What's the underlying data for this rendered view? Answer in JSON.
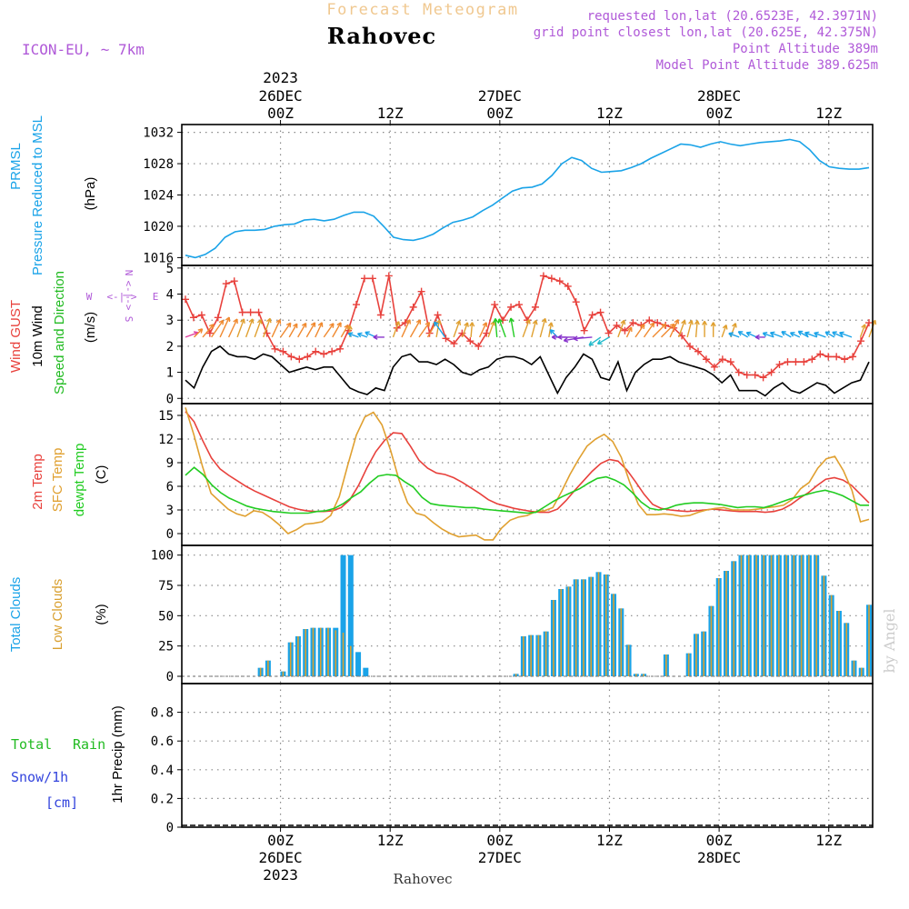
{
  "header": {
    "product_title": "Forecast Meteogram",
    "location": "Rahovec",
    "model": "ICON-EU, ~ 7km",
    "requested": "requested lon,lat (20.6523E, 42.3971N)",
    "grid_point": "grid point closest lon,lat (20.625E, 42.375N)",
    "point_altitude": "Point Altitude 389m",
    "model_altitude": "Model Point Altitude 389.625m",
    "footer_location": "Rahovec",
    "watermark": "by Angel"
  },
  "colors": {
    "pressure": "#1aa3e8",
    "gust": "#e8413c",
    "wind": "#000000",
    "wind_dir_label": "#22bb22",
    "temp2m": "#e8413c",
    "sfc": "#e0a030",
    "dew": "#22cc22",
    "total_clouds": "#1aa3e8",
    "low_clouds": "#d9a030",
    "rain_label": "#22bb22",
    "snow_label": "#3344dd",
    "info": "#b05ad8",
    "title_faint": "#f0c890",
    "grid": "#888888"
  },
  "time_axis": {
    "hours_start": 0,
    "hours_end": 63,
    "top_year": "2023",
    "top_ticks": [
      {
        "h": 9,
        "lines": [
          "26DEC",
          "00Z"
        ]
      },
      {
        "h": 19,
        "lines": [
          "12Z"
        ]
      },
      {
        "h": 29,
        "lines": [
          "27DEC",
          "00Z"
        ]
      },
      {
        "h": 39,
        "lines": [
          "12Z"
        ]
      },
      {
        "h": 49,
        "lines": [
          "28DEC",
          "00Z"
        ]
      },
      {
        "h": 59,
        "lines": [
          "12Z"
        ]
      }
    ],
    "bottom_year": "2023",
    "bottom_ticks": [
      {
        "h": 9,
        "lines": [
          "00Z",
          "26DEC"
        ]
      },
      {
        "h": 19,
        "lines": [
          "12Z"
        ]
      },
      {
        "h": 29,
        "lines": [
          "00Z",
          "27DEC"
        ]
      },
      {
        "h": 39,
        "lines": [
          "12Z"
        ]
      },
      {
        "h": 49,
        "lines": [
          "00Z",
          "28DEC"
        ]
      },
      {
        "h": 59,
        "lines": [
          "12Z"
        ]
      }
    ]
  },
  "chart_data": [
    {
      "type": "line",
      "id": "pressure",
      "label_lines": [
        "PRMSL",
        "Pressure Reduced to MSL"
      ],
      "unit_label": "(hPa)",
      "ylim": [
        1015,
        1033
      ],
      "yticks": [
        1016,
        1020,
        1024,
        1028,
        1032
      ],
      "series": [
        {
          "name": "PRMSL",
          "values": [
            1016.3,
            1016,
            1016.4,
            1017.2,
            1018.6,
            1019.3,
            1019.5,
            1019.5,
            1019.6,
            1020,
            1020.2,
            1020.3,
            1020.8,
            1020.9,
            1020.7,
            1020.9,
            1021.4,
            1021.8,
            1021.8,
            1021.3,
            1020,
            1018.6,
            1018.3,
            1018.2,
            1018.5,
            1019,
            1019.8,
            1020.5,
            1020.8,
            1021.2,
            1022,
            1022.7,
            1023.6,
            1024.5,
            1024.9,
            1025,
            1025.4,
            1026.5,
            1028,
            1028.8,
            1028.4,
            1027.4,
            1026.9,
            1027,
            1027.1,
            1027.5,
            1028,
            1028.7,
            1029.3,
            1029.9,
            1030.5,
            1030.4,
            1030.1,
            1030.5,
            1030.8,
            1030.5,
            1030.3,
            1030.5,
            1030.7,
            1030.8,
            1030.9,
            1031.1,
            1030.8,
            1029.8,
            1028.4,
            1027.6,
            1027.4,
            1027.3,
            1027.3,
            1027.5
          ]
        }
      ]
    },
    {
      "type": "line",
      "id": "wind",
      "label_lines": [
        "Wind GUST",
        "10m Wind",
        "Speed and Direction"
      ],
      "unit_label": "(m/s)",
      "compass": {
        "w": "W",
        "e": "E",
        "n": "N",
        "s": "S",
        "arrow": "<-|->"
      },
      "ylim": [
        -0.2,
        5.1
      ],
      "yticks": [
        0,
        1,
        2,
        3,
        4,
        5
      ],
      "series": [
        {
          "name": "Wind GUST",
          "values": [
            3.8,
            3.1,
            3.2,
            2.5,
            3.1,
            4.4,
            4.5,
            3.3,
            3.3,
            3.3,
            2.5,
            1.9,
            1.8,
            1.6,
            1.5,
            1.6,
            1.8,
            1.7,
            1.8,
            1.9,
            2.6,
            3.6,
            4.6,
            4.6,
            3.2,
            4.7,
            2.7,
            2.9,
            3.5,
            4.1,
            2.5,
            3.2,
            2.3,
            2.1,
            2.5,
            2.2,
            2.0,
            2.5,
            3.6,
            3.0,
            3.5,
            3.6,
            3.0,
            3.5,
            4.7,
            4.6,
            4.5,
            4.3,
            3.7,
            2.6,
            3.2,
            3.3,
            2.5,
            2.8,
            2.6,
            2.9,
            2.8,
            3.0,
            2.9,
            2.8,
            2.7,
            2.4,
            2.0,
            1.8,
            1.5,
            1.2,
            1.5,
            1.4,
            1.0,
            0.9,
            0.9,
            0.8,
            1.0,
            1.3,
            1.4,
            1.4,
            1.4,
            1.5,
            1.7,
            1.6,
            1.6,
            1.5,
            1.6,
            2.2,
            2.9
          ]
        },
        {
          "name": "10m Wind",
          "values": [
            0.7,
            0.4,
            1.2,
            1.8,
            2.0,
            1.7,
            1.6,
            1.6,
            1.5,
            1.7,
            1.6,
            1.3,
            1.0,
            1.1,
            1.2,
            1.1,
            1.2,
            1.2,
            0.8,
            0.4,
            0.25,
            0.15,
            0.4,
            0.3,
            1.2,
            1.6,
            1.7,
            1.4,
            1.4,
            1.3,
            1.5,
            1.3,
            1.0,
            0.9,
            1.1,
            1.2,
            1.5,
            1.6,
            1.6,
            1.5,
            1.3,
            1.6,
            0.9,
            0.2,
            0.8,
            1.2,
            1.7,
            1.5,
            0.8,
            0.7,
            1.4,
            0.3,
            1.0,
            1.3,
            1.5,
            1.5,
            1.6,
            1.4,
            1.3,
            1.2,
            1.1,
            0.9,
            0.6,
            0.9,
            0.3,
            0.3,
            0.3,
            0.1,
            0.4,
            0.6,
            0.3,
            0.2,
            0.4,
            0.6,
            0.5,
            0.2,
            0.4,
            0.6,
            0.7,
            1.4
          ]
        },
        {
          "name": "Wind Direction",
          "values": [
            250,
            225,
            220,
            215,
            205,
            205,
            200,
            200,
            200,
            200,
            205,
            215,
            210,
            210,
            210,
            205,
            215,
            210,
            210,
            180,
            110,
            110,
            115,
            90,
            200,
            205,
            210,
            215,
            210,
            190,
            145,
            200,
            200,
            185,
            205,
            200,
            175,
            160,
            170,
            200,
            195,
            195,
            190,
            135,
            90,
            90,
            80,
            85,
            55,
            60,
            200,
            205,
            215,
            215,
            225,
            225,
            205,
            200,
            195,
            185,
            180,
            180,
            200,
            200,
            110,
            120,
            115,
            90,
            110,
            110,
            120,
            115,
            120,
            110,
            110,
            120,
            115,
            110,
            200,
            200
          ]
        }
      ]
    },
    {
      "type": "line",
      "id": "temperature",
      "label_lines": [
        "2m Temp",
        "SFC Temp",
        "dewpt Temp"
      ],
      "unit_label": "(C)",
      "ylim": [
        -1.5,
        16.5
      ],
      "yticks": [
        0,
        3,
        6,
        9,
        12,
        15
      ],
      "series": [
        {
          "name": "2m Temp",
          "values": [
            15.5,
            14.2,
            11.8,
            9.6,
            8.2,
            7.4,
            6.7,
            6,
            5.4,
            4.9,
            4.4,
            3.9,
            3.4,
            3.1,
            2.9,
            2.8,
            2.8,
            2.9,
            3.3,
            4.3,
            6.1,
            8.4,
            10.4,
            11.8,
            12.8,
            12.7,
            11.1,
            9.3,
            8.3,
            7.7,
            7.5,
            7.1,
            6.5,
            5.8,
            5.1,
            4.3,
            3.8,
            3.5,
            3.2,
            3,
            2.8,
            2.7,
            2.7,
            3.1,
            4.2,
            5.5,
            6.7,
            7.9,
            8.9,
            9.4,
            9.2,
            8.1,
            6.6,
            5,
            3.7,
            3.2,
            3,
            2.9,
            2.8,
            2.9,
            3,
            3.1,
            3,
            2.9,
            2.8,
            2.8,
            2.8,
            2.7,
            2.8,
            3.1,
            3.7,
            4.5,
            5.2,
            6.1,
            6.9,
            7.1,
            6.8,
            6.1,
            5,
            3.9
          ]
        },
        {
          "name": "SFC Temp",
          "values": [
            16,
            12.5,
            8.5,
            5.1,
            4.1,
            3.1,
            2.5,
            2.2,
            2.9,
            2.7,
            2,
            1.1,
            0,
            0.5,
            1.2,
            1.3,
            1.5,
            2.3,
            4.7,
            8.7,
            12.5,
            14.8,
            15.4,
            13.8,
            10.6,
            6.8,
            3.9,
            2.6,
            2.3,
            1.4,
            0.6,
            0,
            -0.4,
            -0.3,
            -0.2,
            -0.8,
            -0.8,
            0.7,
            1.7,
            2.1,
            2.3,
            2.8,
            2.9,
            3.3,
            5.3,
            7.5,
            9.4,
            11.1,
            12,
            12.6,
            11.7,
            9.7,
            6.5,
            3.7,
            2.4,
            2.4,
            2.5,
            2.4,
            2.2,
            2.3,
            2.7,
            3,
            3.2,
            3.3,
            3,
            3,
            3,
            3.1,
            3.3,
            3.4,
            3.6,
            4.3,
            5.7,
            6.5,
            8.3,
            9.5,
            9.8,
            8,
            5.5,
            1.5,
            1.8
          ]
        },
        {
          "name": "dewpt Temp",
          "values": [
            7.4,
            8.4,
            7.5,
            6.2,
            5.2,
            4.5,
            4,
            3.5,
            3.2,
            3,
            2.8,
            2.7,
            2.6,
            2.6,
            2.6,
            2.8,
            2.9,
            3.2,
            3.8,
            4.6,
            5.3,
            6.4,
            7.3,
            7.5,
            7.4,
            6.6,
            5.9,
            4.6,
            3.8,
            3.6,
            3.5,
            3.4,
            3.3,
            3.3,
            3.1,
            3,
            2.9,
            2.8,
            2.7,
            2.6,
            2.7,
            3.4,
            4.1,
            4.7,
            5.2,
            5.7,
            6.4,
            7,
            7.2,
            6.8,
            6.2,
            5.2,
            4,
            3.2,
            3,
            3.2,
            3.6,
            3.8,
            3.9,
            3.9,
            3.8,
            3.7,
            3.5,
            3.3,
            3.4,
            3.4,
            3.3,
            3.6,
            4,
            4.4,
            4.7,
            5,
            5.3,
            5.5,
            5.2,
            4.8,
            4.2,
            3.6,
            3.6
          ]
        }
      ]
    },
    {
      "type": "bar",
      "id": "clouds",
      "label_lines": [
        "Total Clouds",
        "Low Clouds"
      ],
      "unit_label": "(%)",
      "ylim": [
        -6,
        108
      ],
      "yticks": [
        0,
        25,
        50,
        75,
        100
      ],
      "series": [
        {
          "name": "Total Clouds",
          "values": [
            0,
            0,
            0,
            0,
            0,
            0,
            0,
            0,
            0,
            0,
            7,
            13,
            0,
            4,
            28,
            33,
            39,
            40,
            40,
            40,
            40,
            100,
            100,
            20,
            7,
            0,
            0,
            0,
            0,
            0,
            0,
            0,
            0,
            0,
            0,
            0,
            0,
            0,
            0,
            0,
            0,
            0,
            0,
            0,
            2,
            33,
            34,
            34,
            37,
            63,
            72,
            74,
            80,
            80,
            82,
            86,
            84,
            68,
            56,
            26,
            2,
            2,
            0,
            0,
            18,
            0,
            0,
            19,
            35,
            37,
            58,
            81,
            87,
            95,
            100,
            100,
            100,
            100,
            100,
            100,
            100,
            100,
            100,
            100,
            100,
            83,
            67,
            54,
            44,
            13,
            7,
            59
          ]
        },
        {
          "name": "Low Clouds",
          "values": [
            0,
            0,
            0,
            0,
            0,
            0,
            0,
            0,
            0,
            0,
            7,
            13,
            0,
            4,
            28,
            33,
            39,
            40,
            40,
            40,
            38,
            36,
            25,
            0,
            0,
            0,
            0,
            0,
            0,
            0,
            0,
            0,
            0,
            0,
            0,
            0,
            0,
            0,
            0,
            0,
            0,
            0,
            0,
            0,
            2,
            33,
            34,
            34,
            37,
            63,
            72,
            74,
            80,
            80,
            82,
            86,
            84,
            68,
            56,
            26,
            2,
            2,
            0,
            0,
            18,
            0,
            0,
            19,
            35,
            37,
            58,
            81,
            87,
            95,
            100,
            100,
            100,
            100,
            100,
            100,
            100,
            100,
            100,
            100,
            100,
            83,
            67,
            54,
            44,
            13,
            7,
            59
          ]
        }
      ]
    },
    {
      "type": "line",
      "id": "precip",
      "label_lines": [
        "Total",
        "Rain",
        "Snow/1h",
        "[cm]"
      ],
      "unit_label": "1hr Precip (mm)",
      "ylim": [
        0,
        1
      ],
      "yticks": [
        0,
        0.2,
        0.4,
        0.6,
        0.8
      ],
      "series": [
        {
          "name": "Total Rain",
          "values": [
            0
          ]
        },
        {
          "name": "Snow/1h",
          "values": [
            0
          ]
        }
      ]
    }
  ]
}
